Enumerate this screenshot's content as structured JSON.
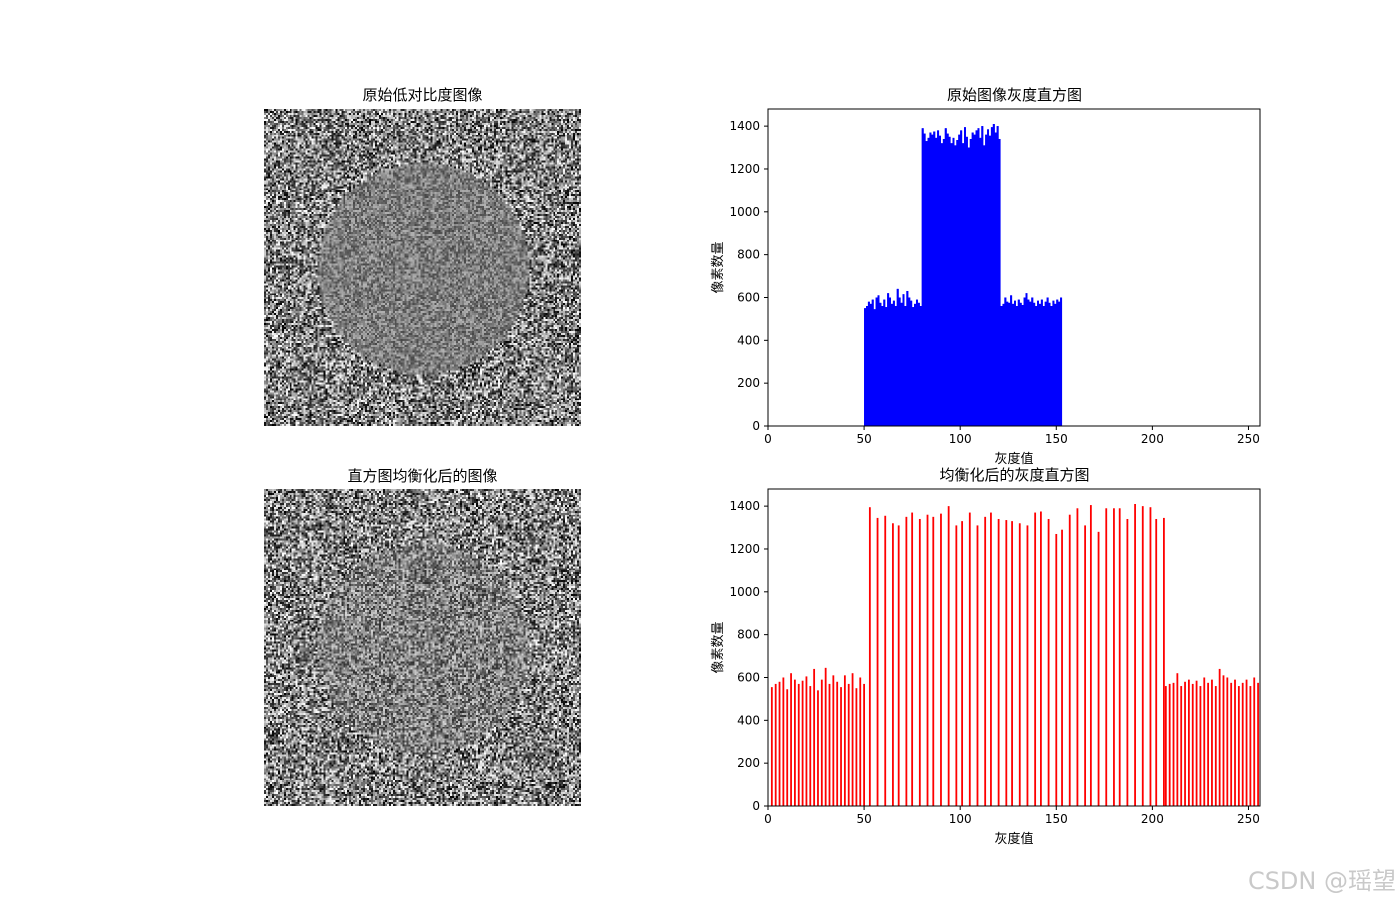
{
  "panels": {
    "original_image": {
      "title": "原始低对比度图像"
    },
    "equalized_image": {
      "title": "直方图均衡化后的图像"
    }
  },
  "chart_data": [
    {
      "type": "bar",
      "title": "原始图像灰度直方图",
      "xlabel": "灰度值",
      "ylabel": "像素数量",
      "xlim": [
        0,
        256
      ],
      "ylim": [
        0,
        1480
      ],
      "xticks": [
        0,
        50,
        100,
        150,
        200,
        250
      ],
      "yticks": [
        0,
        200,
        400,
        600,
        800,
        1000,
        1200,
        1400
      ],
      "color": "#0000ff",
      "bins": {
        "start": 50,
        "values": [
          550,
          560,
          580,
          570,
          590,
          545,
          600,
          610,
          575,
          560,
          590,
          555,
          620,
          600,
          570,
          585,
          560,
          640,
          600,
          575,
          615,
          560,
          630,
          600,
          585,
          555,
          570,
          590,
          575,
          560,
          1390,
          1365,
          1330,
          1345,
          1370,
          1360,
          1375,
          1345,
          1380,
          1355,
          1320,
          1340,
          1390,
          1365,
          1350,
          1320,
          1345,
          1310,
          1335,
          1360,
          1380,
          1320,
          1395,
          1350,
          1300,
          1340,
          1370,
          1360,
          1380,
          1390,
          1345,
          1400,
          1310,
          1360,
          1385,
          1355,
          1395,
          1410,
          1370,
          1400,
          1340,
          560,
          570,
          600,
          580,
          575,
          610,
          570,
          585,
          560,
          590,
          575,
          565,
          600,
          620,
          590,
          580,
          600,
          575,
          560,
          585,
          570,
          590,
          560,
          580,
          600,
          575,
          560,
          585,
          570,
          590,
          580,
          600
        ]
      }
    },
    {
      "type": "bar",
      "title": "均衡化后的灰度直方图",
      "xlabel": "灰度值",
      "ylabel": "像素数量",
      "xlim": [
        0,
        256
      ],
      "ylim": [
        0,
        1480
      ],
      "xticks": [
        0,
        50,
        100,
        150,
        200,
        250
      ],
      "yticks": [
        0,
        200,
        400,
        600,
        800,
        1000,
        1200,
        1400
      ],
      "color": "#ff0000",
      "low_bars": {
        "x": [
          2,
          4,
          6,
          8,
          10,
          12,
          14,
          16,
          18,
          20,
          22,
          24,
          26,
          28,
          30,
          32,
          34,
          36,
          38,
          40,
          42,
          44,
          46,
          48,
          50
        ],
        "values": [
          555,
          570,
          580,
          600,
          545,
          620,
          590,
          570,
          585,
          605,
          560,
          640,
          540,
          590,
          645,
          570,
          610,
          580,
          555,
          610,
          570,
          620,
          550,
          600,
          570
        ]
      },
      "mid_bars": {
        "x": [
          53,
          57,
          61,
          65,
          68,
          72,
          75,
          79,
          83,
          86,
          90,
          94,
          98,
          101,
          105,
          109,
          113,
          116,
          120,
          124,
          127,
          131,
          135,
          139,
          142,
          146,
          150,
          153,
          157,
          161,
          165,
          168,
          172,
          176,
          180,
          183,
          187,
          191,
          195,
          199,
          202,
          206
        ],
        "values": [
          1395,
          1345,
          1355,
          1320,
          1310,
          1350,
          1370,
          1340,
          1360,
          1350,
          1365,
          1400,
          1310,
          1330,
          1370,
          1310,
          1350,
          1370,
          1340,
          1335,
          1330,
          1320,
          1310,
          1370,
          1375,
          1340,
          1270,
          1290,
          1360,
          1390,
          1310,
          1405,
          1280,
          1390,
          1390,
          1390,
          1340,
          1410,
          1400,
          1395,
          1340,
          1345
        ]
      },
      "high_bars": {
        "x": [
          207,
          209,
          211,
          213,
          215,
          217,
          219,
          221,
          223,
          225,
          227,
          229,
          231,
          233,
          235,
          237,
          239,
          241,
          243,
          245,
          247,
          249,
          251,
          253,
          255
        ],
        "values": [
          560,
          570,
          575,
          620,
          560,
          580,
          590,
          570,
          585,
          560,
          600,
          575,
          590,
          560,
          640,
          610,
          600,
          575,
          590,
          560,
          575,
          590,
          560,
          600,
          575
        ]
      }
    }
  ],
  "watermark": "CSDN @瑶望"
}
